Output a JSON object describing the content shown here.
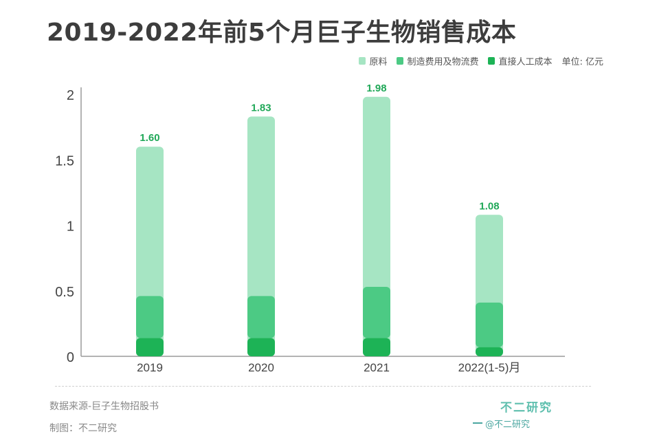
{
  "title": "2019-2022年前5个月巨子生物销售成本",
  "legend": {
    "items": [
      {
        "label": "原料",
        "color": "#a6e5c3"
      },
      {
        "label": "制造费用及物流费",
        "color": "#4cca84"
      },
      {
        "label": "直接人工成本",
        "color": "#1db356"
      }
    ],
    "unit": "单位: 亿元"
  },
  "chart_data": {
    "type": "bar",
    "stacked": true,
    "categories": [
      "2019",
      "2020",
      "2021",
      "2022(1-5)月"
    ],
    "series": [
      {
        "name": "直接人工成本",
        "values": [
          0.14,
          0.14,
          0.14,
          0.07
        ]
      },
      {
        "name": "制造费用及物流费",
        "values": [
          0.32,
          0.32,
          0.39,
          0.34
        ]
      },
      {
        "name": "原料",
        "values": [
          1.14,
          1.37,
          1.45,
          0.67
        ]
      }
    ],
    "totals": [
      1.6,
      1.83,
      1.98,
      1.08
    ],
    "total_labels": [
      "1.60",
      "1.83",
      "1.98",
      "1.08"
    ],
    "y_ticks": [
      "0",
      "0.5",
      "1",
      "1.5",
      "2"
    ],
    "ylim": [
      0,
      2
    ],
    "grid": false,
    "legend_position": "top-right"
  },
  "footer": {
    "source": "数据来源-巨子生物招股书",
    "maker": "制图：不二研究",
    "brand": "不二研究",
    "brand_sub": "@不二研究"
  }
}
